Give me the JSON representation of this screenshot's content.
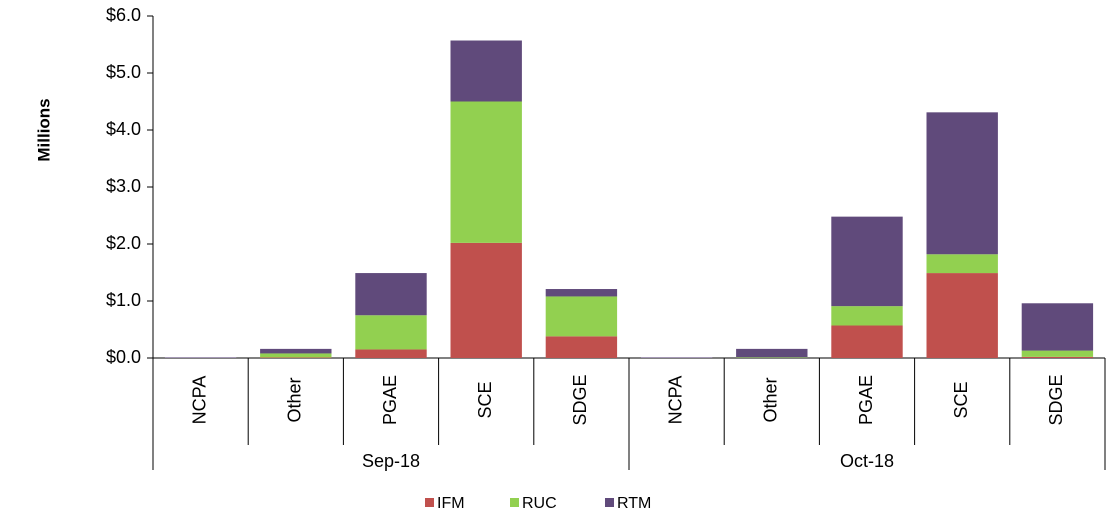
{
  "chart_data": {
    "type": "stacked_bar",
    "y_label": "Millions",
    "categories": [
      "NCPA",
      "Other",
      "PGAE",
      "SCE",
      "SDGE",
      "NCPA",
      "Other",
      "PGAE",
      "SCE",
      "SDGE"
    ],
    "groups": [
      "Sep-18",
      "Oct-18"
    ],
    "series": [
      {
        "name": "IFM",
        "color": "#c0504d",
        "values": [
          0,
          0.01,
          0.15,
          2.02,
          0.38,
          0,
          0,
          0.57,
          1.49,
          0.02
        ]
      },
      {
        "name": "RUC",
        "color": "#92d050",
        "values": [
          0,
          0.07,
          0.6,
          2.48,
          0.7,
          0,
          0.01,
          0.34,
          0.33,
          0.11
        ]
      },
      {
        "name": "RTM",
        "color": "#604a7b",
        "values": [
          0.01,
          0.08,
          0.74,
          1.07,
          0.13,
          0.01,
          0.15,
          1.57,
          2.49,
          0.83
        ]
      }
    ],
    "ylim": [
      0,
      6
    ],
    "yticks": [
      {
        "value": 0,
        "label": "$0.0"
      },
      {
        "value": 1,
        "label": "$1.0"
      },
      {
        "value": 2,
        "label": "$2.0"
      },
      {
        "value": 3,
        "label": "$3.0"
      },
      {
        "value": 4,
        "label": "$4.0"
      },
      {
        "value": 5,
        "label": "$5.0"
      },
      {
        "value": 6,
        "label": "$6.0"
      }
    ],
    "grid": false,
    "legend": "bottom"
  }
}
